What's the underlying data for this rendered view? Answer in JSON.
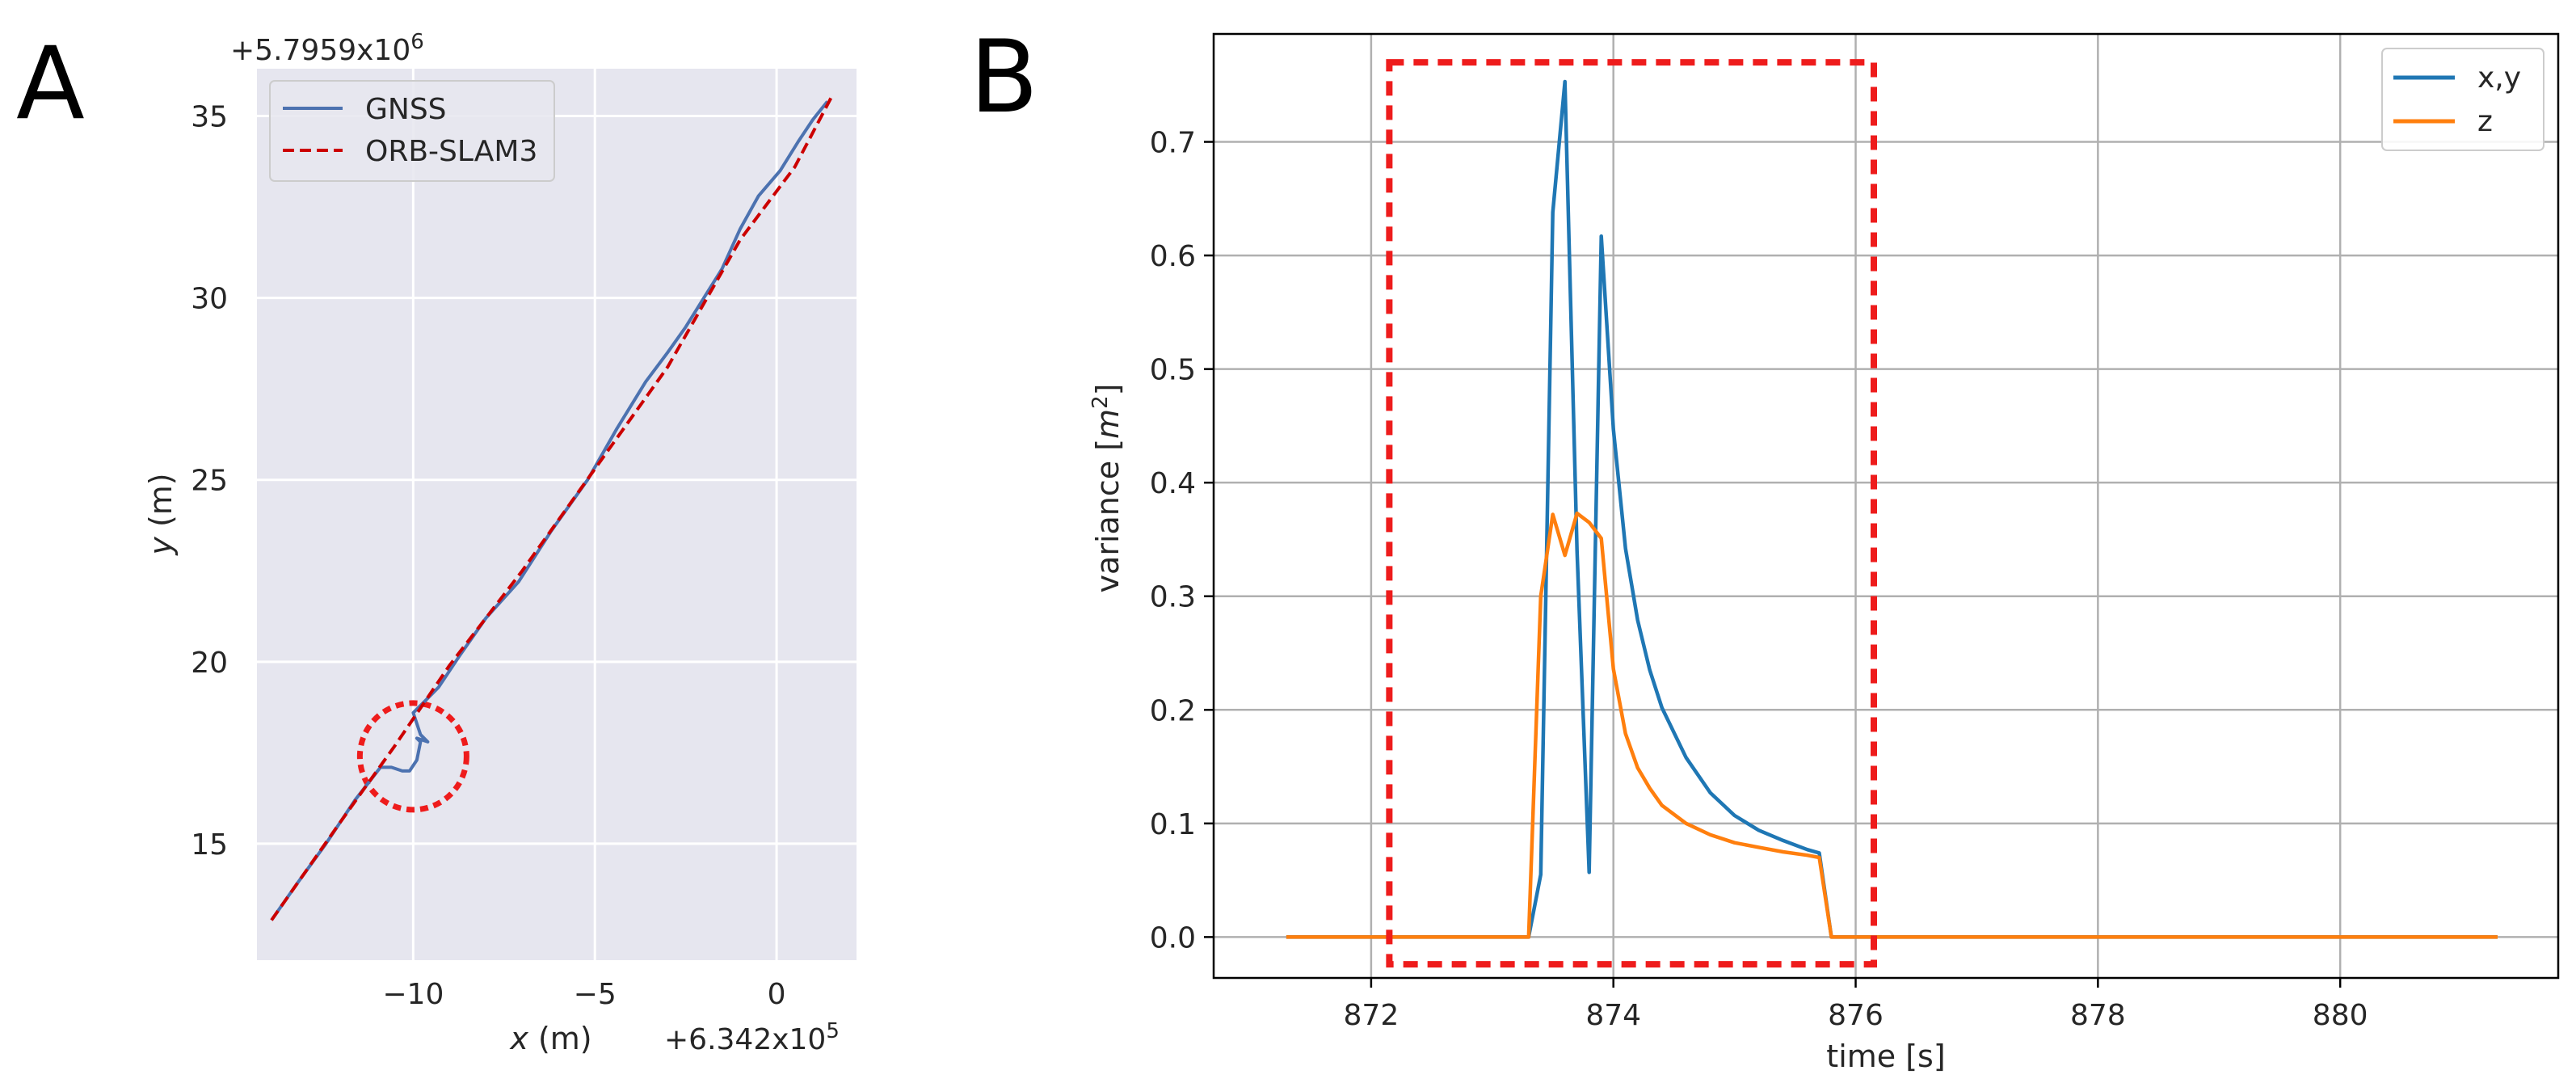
{
  "panels": {
    "a": {
      "letter": "A",
      "chart_data": {
        "type": "line",
        "xlabel_var": "x",
        "xlabel_unit": " (m)",
        "ylabel_var": "y",
        "ylabel_unit": " (m)",
        "x_offset_label": "+6.342x10",
        "x_offset_exp": "5",
        "y_offset_label": "+5.7959x10",
        "y_offset_exp": "6",
        "xlim": [
          -14.3,
          2.2
        ],
        "ylim": [
          11.8,
          36.3
        ],
        "x_ticks": [
          -10,
          -5,
          0
        ],
        "x_tick_labels": [
          "−10",
          "−5",
          "0"
        ],
        "y_ticks": [
          15,
          20,
          25,
          30,
          35
        ],
        "y_tick_labels": [
          "15",
          "20",
          "25",
          "30",
          "35"
        ],
        "grid": true,
        "legend_position": "top-left",
        "series": [
          {
            "name": "GNSS",
            "color": "#4c72b0",
            "style": "solid",
            "x": [
              -13.9,
              -13.2,
              -12.4,
              -11.6,
              -10.9,
              -10.6,
              -10.3,
              -10.1,
              -9.9,
              -9.8,
              -9.9,
              -9.6,
              -9.8,
              -9.9,
              -10.0,
              -9.7,
              -9.3,
              -8.7,
              -8.0,
              -7.1,
              -6.2,
              -5.2,
              -4.4,
              -3.6,
              -3.0,
              -2.5,
              -2.0,
              -1.5,
              -1.0,
              -0.5,
              0.1,
              0.6,
              1.0,
              1.4
            ],
            "y": [
              12.9,
              13.9,
              15.0,
              16.2,
              17.1,
              17.1,
              17.0,
              17.0,
              17.3,
              17.8,
              17.9,
              17.8,
              18.0,
              18.3,
              18.6,
              18.9,
              19.3,
              20.2,
              21.2,
              22.2,
              23.6,
              25.0,
              26.4,
              27.7,
              28.5,
              29.2,
              30.0,
              30.8,
              31.9,
              32.8,
              33.5,
              34.3,
              34.9,
              35.4
            ],
            "color_name": "blue"
          },
          {
            "name": "ORB-SLAM3",
            "color": "#cc0000",
            "style": "dashed",
            "x": [
              -13.9,
              -12.0,
              -10.5,
              -9.0,
              -7.0,
              -5.0,
              -3.0,
              -1.0,
              0.5,
              1.5
            ],
            "y": [
              12.9,
              15.6,
              17.7,
              19.9,
              22.5,
              25.3,
              28.1,
              31.6,
              33.6,
              35.5
            ]
          }
        ],
        "annotation": {
          "type": "dashed-circle",
          "color": "#ee1c1c",
          "center_x": -10.0,
          "center_y": 17.4,
          "description": "highlighted disturbance region"
        }
      }
    },
    "b": {
      "letter": "B",
      "chart_data": {
        "type": "line",
        "xlabel": "time [s]",
        "ylabel_text": "variance [",
        "ylabel_var": "m",
        "ylabel_exp": "2",
        "ylabel_close": "]",
        "xlim": [
          870.7,
          881.8
        ],
        "ylim": [
          -0.036,
          0.795
        ],
        "x_ticks": [
          872,
          874,
          876,
          878,
          880
        ],
        "x_tick_labels": [
          "872",
          "874",
          "876",
          "878",
          "880"
        ],
        "y_ticks": [
          0.0,
          0.1,
          0.2,
          0.3,
          0.4,
          0.5,
          0.6,
          0.7
        ],
        "y_tick_labels": [
          "0.0",
          "0.1",
          "0.2",
          "0.3",
          "0.4",
          "0.5",
          "0.6",
          "0.7"
        ],
        "grid": true,
        "legend_position": "top-right",
        "series": [
          {
            "name": "x,y",
            "color": "#1f77b4",
            "x": [
              871.3,
              873.3,
              873.4,
              873.5,
              873.6,
              873.7,
              873.8,
              873.9,
              874.0,
              874.1,
              874.2,
              874.3,
              874.4,
              874.6,
              874.8,
              875.0,
              875.2,
              875.4,
              875.6,
              875.7,
              875.8,
              881.3
            ],
            "y": [
              0.0,
              0.0,
              0.055,
              0.638,
              0.753,
              0.34,
              0.057,
              0.617,
              0.447,
              0.342,
              0.279,
              0.235,
              0.202,
              0.158,
              0.127,
              0.107,
              0.094,
              0.085,
              0.077,
              0.074,
              0.0,
              0.0
            ]
          },
          {
            "name": "z",
            "color": "#ff7f0e",
            "x": [
              871.3,
              873.3,
              873.4,
              873.5,
              873.6,
              873.7,
              873.8,
              873.9,
              874.0,
              874.1,
              874.2,
              874.3,
              874.4,
              874.6,
              874.8,
              875.0,
              875.2,
              875.4,
              875.6,
              875.7,
              875.8,
              881.3
            ],
            "y": [
              0.0,
              0.0,
              0.3,
              0.372,
              0.336,
              0.373,
              0.365,
              0.351,
              0.236,
              0.179,
              0.149,
              0.131,
              0.116,
              0.1,
              0.09,
              0.083,
              0.079,
              0.075,
              0.072,
              0.07,
              0.0,
              0.0
            ]
          }
        ],
        "annotation": {
          "type": "dashed-rectangle",
          "color": "#ee1c1c",
          "x_range": [
            872.15,
            876.15
          ],
          "y_range": [
            -0.024,
            0.77
          ],
          "description": "highlighted variance spike window"
        }
      }
    }
  }
}
